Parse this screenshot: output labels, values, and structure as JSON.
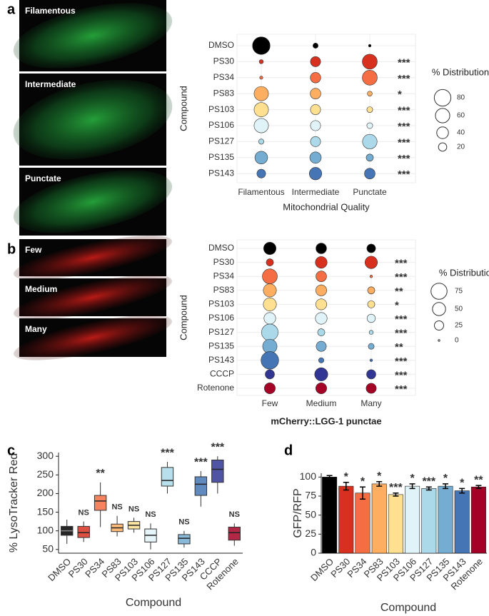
{
  "chart_data": [
    {
      "type": "bubble",
      "panel_label": "a",
      "image_labels": [
        "Filamentous",
        "Intermediate",
        "Punctate"
      ],
      "image_color": "#2fd24a",
      "categories": [
        "DMSO",
        "PS30",
        "PS34",
        "PS83",
        "PS103",
        "PS106",
        "PS127",
        "PS135",
        "PS143"
      ],
      "colors": [
        "#000000",
        "#d7301f",
        "#f46d43",
        "#fdae61",
        "#fee090",
        "#e0f3f8",
        "#abd9e9",
        "#74add1",
        "#4575b4"
      ],
      "series": [
        {
          "name": "Filamentous",
          "values": [
            90,
            5,
            3,
            60,
            60,
            60,
            8,
            47,
            22
          ]
        },
        {
          "name": "Intermediate",
          "values": [
            8,
            30,
            32,
            33,
            30,
            30,
            30,
            38,
            45
          ]
        },
        {
          "name": "Punctate",
          "values": [
            2,
            65,
            65,
            7,
            10,
            10,
            62,
            15,
            33
          ]
        }
      ],
      "annotations": [
        null,
        "***",
        "***",
        "*",
        "***",
        "***",
        "***",
        "***",
        "***"
      ],
      "annotation_colors": [
        "#000",
        "#000",
        "#000",
        "#000",
        "#000",
        "#000",
        "#000",
        "#000",
        "#000"
      ],
      "size_legend": {
        "title": "% Distribution",
        "values": [
          80,
          60,
          40,
          20
        ]
      },
      "y_label": "Compound",
      "x_label": "Mitochondrial Quality"
    },
    {
      "type": "bubble",
      "panel_label": "b",
      "image_labels": [
        "Few",
        "Medium",
        "Many"
      ],
      "image_color": "#e8201a",
      "categories": [
        "DMSO",
        "PS30",
        "PS34",
        "PS83",
        "PS103",
        "PS106",
        "PS127",
        "PS135",
        "PS143",
        "CCCP",
        "Rotenone"
      ],
      "colors": [
        "#000000",
        "#d7301f",
        "#f46d43",
        "#fdae61",
        "#fee090",
        "#e0f3f8",
        "#abd9e9",
        "#74add1",
        "#4575b4",
        "#313695",
        "#a50026"
      ],
      "series": [
        {
          "name": "Few",
          "values": [
            45,
            15,
            65,
            50,
            50,
            40,
            80,
            60,
            90,
            25,
            35
          ]
        },
        {
          "name": "Medium",
          "values": [
            33,
            40,
            33,
            35,
            35,
            40,
            15,
            30,
            8,
            50,
            35
          ]
        },
        {
          "name": "Many",
          "values": [
            22,
            45,
            2,
            15,
            15,
            20,
            5,
            10,
            2,
            25,
            30
          ]
        }
      ],
      "annotations": [
        null,
        "***",
        "***",
        "**",
        "*",
        "***",
        "***",
        "**",
        "***",
        "***",
        "***"
      ],
      "annotation_colors": [
        "#000",
        "#000",
        "#e31a1c",
        "#000",
        "#000",
        "#000",
        "#e31a1c",
        "#000",
        "#e31a1c",
        "#000",
        "#000"
      ],
      "size_legend": {
        "title": "% Distribution",
        "values": [
          75,
          50,
          25,
          0
        ]
      },
      "y_label": "Compound",
      "x_label": "mCherry::LGG-1 punctae"
    },
    {
      "type": "box",
      "panel_label": "c",
      "categories": [
        "DMSO",
        "PS30",
        "PS34",
        "PS83",
        "PS103",
        "PS106",
        "PS127",
        "PS135",
        "PS143",
        "CCCP",
        "Rotenone"
      ],
      "colors": [
        "#000000",
        "#d7301f",
        "#f46d43",
        "#fdae61",
        "#fee090",
        "#e0f3f8",
        "#abd9e9",
        "#74add1",
        "#4575b4",
        "#313695",
        "#a50026"
      ],
      "whisker_low": [
        65,
        70,
        110,
        85,
        95,
        50,
        200,
        55,
        165,
        200,
        60
      ],
      "q1": [
        88,
        82,
        155,
        98,
        105,
        70,
        220,
        65,
        195,
        230,
        75
      ],
      "median": [
        100,
        95,
        180,
        108,
        115,
        88,
        235,
        80,
        225,
        265,
        95
      ],
      "q3": [
        112,
        112,
        195,
        118,
        125,
        105,
        270,
        90,
        245,
        290,
        110
      ],
      "whisker_high": [
        130,
        125,
        230,
        140,
        135,
        120,
        285,
        100,
        260,
        300,
        120
      ],
      "annotations": [
        null,
        "NS",
        "**",
        "NS",
        "NS",
        "NS",
        "***",
        "NS",
        "***",
        "***",
        "NS"
      ],
      "annotation_color": "#2a7fc1",
      "ylim": [
        40,
        310
      ],
      "yticks": [
        50,
        100,
        150,
        200,
        250,
        300
      ],
      "y_label": "% LysoTracker Red",
      "x_label": "Compound"
    },
    {
      "type": "bar",
      "panel_label": "d",
      "categories": [
        "DMSO",
        "PS30",
        "PS34",
        "PS83",
        "PS103",
        "PS106",
        "PS127",
        "PS135",
        "PS143",
        "Rotenone"
      ],
      "colors": [
        "#000000",
        "#d7301f",
        "#f46d43",
        "#fdae61",
        "#fee090",
        "#e0f3f8",
        "#abd9e9",
        "#74add1",
        "#4575b4",
        "#a50026"
      ],
      "values": [
        100,
        88,
        79,
        91,
        77,
        88,
        85,
        88,
        82,
        87
      ],
      "errors": [
        2,
        5,
        8,
        3,
        2,
        3,
        2,
        3,
        3,
        2
      ],
      "annotations": [
        null,
        "*",
        "*",
        "*",
        "***",
        "*",
        "***",
        "*",
        "*",
        "**"
      ],
      "annotation_color": "#2a7fc1",
      "ylim": [
        0,
        105
      ],
      "yticks": [
        0,
        25,
        50,
        75,
        100
      ],
      "y_label": "GFP/RFP",
      "x_label": "Compound"
    }
  ]
}
